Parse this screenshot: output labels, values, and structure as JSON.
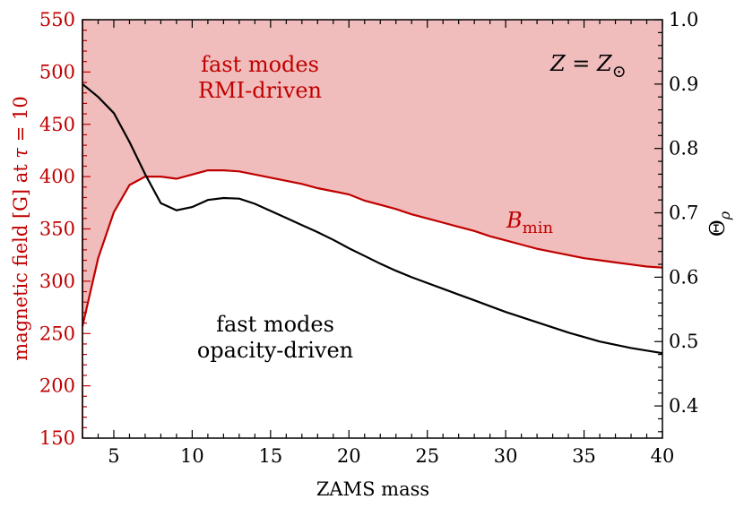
{
  "chart_data": {
    "type": "line",
    "xlabel": "ZAMS mass",
    "ylabel_left_prefix": "magnetic field [G] at",
    "ylabel_left_symbol": "τ",
    "ylabel_left_suffix": " = 10",
    "ylabel_right_symbol": "Θ",
    "ylabel_right_sub": "ρ",
    "xlim": [
      3,
      40
    ],
    "ylim_left": [
      150,
      550
    ],
    "ylim_right": [
      0.35,
      1.0
    ],
    "x_ticks": [
      5,
      10,
      15,
      20,
      25,
      30,
      35,
      40
    ],
    "y_left_ticks": [
      150,
      200,
      250,
      300,
      350,
      400,
      450,
      500,
      550
    ],
    "y_right_ticks": [
      "0.4",
      "0.5",
      "0.6",
      "0.7",
      "0.8",
      "0.9",
      "1.0"
    ],
    "colors": {
      "bmin": "#c00000",
      "theta": "#000000",
      "fill": "#f0bcbc"
    },
    "series": [
      {
        "name": "B_min",
        "axis": "left",
        "color": "#c00000",
        "x": [
          3,
          4,
          5,
          6,
          7,
          8,
          9,
          10,
          11,
          12,
          13,
          14,
          15,
          16,
          17,
          18,
          19,
          20,
          21,
          22,
          23,
          24,
          25,
          26,
          27,
          28,
          29,
          30,
          31,
          32,
          33,
          34,
          35,
          36,
          37,
          38,
          39,
          40
        ],
        "values": [
          257,
          322,
          366,
          392,
          400,
          400,
          398,
          402,
          406,
          406,
          405,
          402,
          399,
          396,
          393,
          389,
          386,
          383,
          377,
          373,
          369,
          364,
          360,
          356,
          352,
          348,
          343,
          339,
          335,
          331,
          328,
          325,
          322,
          320,
          318,
          316,
          314,
          313
        ]
      },
      {
        "name": "Theta_rho",
        "axis": "right",
        "color": "#000000",
        "x": [
          3,
          4,
          5,
          6,
          7,
          8,
          9,
          10,
          11,
          12,
          13,
          14,
          15,
          16,
          17,
          18,
          19,
          20,
          21,
          22,
          23,
          24,
          25,
          26,
          27,
          28,
          29,
          30,
          31,
          32,
          33,
          34,
          35,
          36,
          37,
          38,
          39,
          40
        ],
        "values": [
          0.9,
          0.88,
          0.855,
          0.81,
          0.76,
          0.715,
          0.704,
          0.709,
          0.72,
          0.723,
          0.722,
          0.714,
          0.703,
          0.692,
          0.681,
          0.67,
          0.658,
          0.645,
          0.633,
          0.621,
          0.61,
          0.6,
          0.591,
          0.582,
          0.573,
          0.564,
          0.555,
          0.546,
          0.538,
          0.53,
          0.522,
          0.514,
          0.507,
          0.5,
          0.495,
          0.49,
          0.486,
          0.482
        ]
      }
    ],
    "annotations": {
      "rmi_line1": "fast modes",
      "rmi_line2": "RMI-driven",
      "opacity_line1": "fast modes",
      "opacity_line2": "opacity-driven",
      "metallicity": "Z = Z",
      "metallicity_sub": "⊙",
      "bmin_label": "B",
      "bmin_sub": "min"
    }
  }
}
